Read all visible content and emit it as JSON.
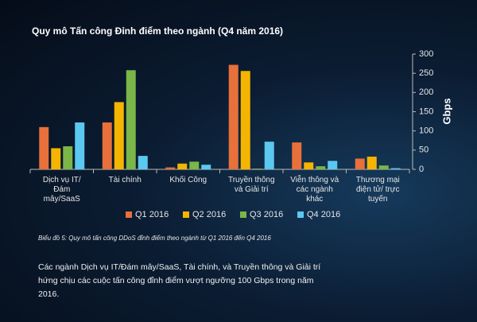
{
  "chart_data": {
    "type": "bar",
    "title": "Quy mô Tấn công Đỉnh điểm theo ngành (Q4 năm 2016)",
    "y_label": "Gbps",
    "categories": [
      "Dịch vụ IT/Đám mây/SaaS",
      "Tài chính",
      "Khối Công",
      "Truyền thông và Giải trí",
      "Viễn thông và các ngành khác",
      "Thương mại điện tử/ trực tuyến"
    ],
    "series": [
      {
        "name": "Q1 2016",
        "color": "#e8703a",
        "values": [
          110,
          122,
          5,
          272,
          70,
          28
        ]
      },
      {
        "name": "Q2 2016",
        "color": "#f5b400",
        "values": [
          55,
          175,
          15,
          256,
          18,
          33
        ]
      },
      {
        "name": "Q3 2016",
        "color": "#7ab648",
        "values": [
          60,
          258,
          20,
          2,
          8,
          10
        ]
      },
      {
        "name": "Q4 2016",
        "color": "#5bc8f0",
        "values": [
          122,
          35,
          12,
          72,
          22,
          3
        ]
      }
    ],
    "ylim": [
      0,
      300
    ],
    "yticks": [
      0,
      50,
      100,
      150,
      200,
      250,
      300
    ],
    "caption": "Biểu đồ 5: Quy mô tấn công DDoS đỉnh điểm theo ngành từ Q1 2016 đến Q4 2016",
    "note": "Các ngành Dịch vụ IT/Đám mây/SaaS, Tài chính, và Truyền thông và Giải trí hứng chịu các cuộc tấn công đỉnh điểm vượt ngưỡng 100 Gbps trong năm 2016."
  }
}
